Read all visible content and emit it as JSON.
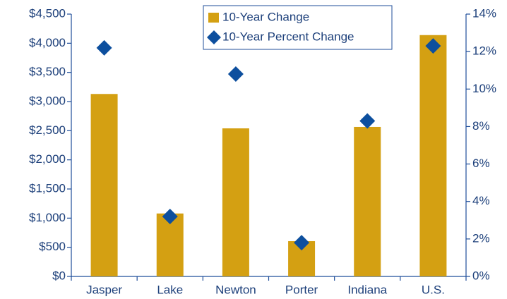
{
  "chart_data": {
    "type": "bar-diamond",
    "categories": [
      "Jasper",
      "Lake",
      "Newton",
      "Porter",
      "Indiana",
      "U.S."
    ],
    "series": [
      {
        "name": "10-Year Change",
        "color": "#d4a012",
        "values": [
          3130,
          1080,
          2540,
          605,
          2565,
          4140
        ]
      },
      {
        "name": "10-Year Percent Change",
        "color": "#0d4f9e",
        "axis": "y2",
        "values": [
          12.2,
          3.2,
          10.8,
          1.8,
          8.3,
          12.3
        ]
      }
    ],
    "ylim": [
      0,
      4500
    ],
    "yticks": [
      {
        "value": 0,
        "label": "$0"
      },
      {
        "value": 500,
        "label": "$500"
      },
      {
        "value": 1000,
        "label": "$1,000"
      },
      {
        "value": 1500,
        "label": "$1,500"
      },
      {
        "value": 2000,
        "label": "$2,000"
      },
      {
        "value": 2500,
        "label": "$2,500"
      },
      {
        "value": 3000,
        "label": "$3,000"
      },
      {
        "value": 3500,
        "label": "$3,500"
      },
      {
        "value": 4000,
        "label": "$4,000"
      },
      {
        "value": 4500,
        "label": "$4,500"
      }
    ],
    "y2lim": [
      0,
      14
    ],
    "y2ticks": [
      {
        "value": 0,
        "label": "0%"
      },
      {
        "value": 2,
        "label": "2%"
      },
      {
        "value": 4,
        "label": "4%"
      },
      {
        "value": 6,
        "label": "6%"
      },
      {
        "value": 8,
        "label": "8%"
      },
      {
        "value": 10,
        "label": "10%"
      },
      {
        "value": 12,
        "label": "12%"
      },
      {
        "value": 14,
        "label": "14%"
      }
    ],
    "legend": "top-center"
  }
}
